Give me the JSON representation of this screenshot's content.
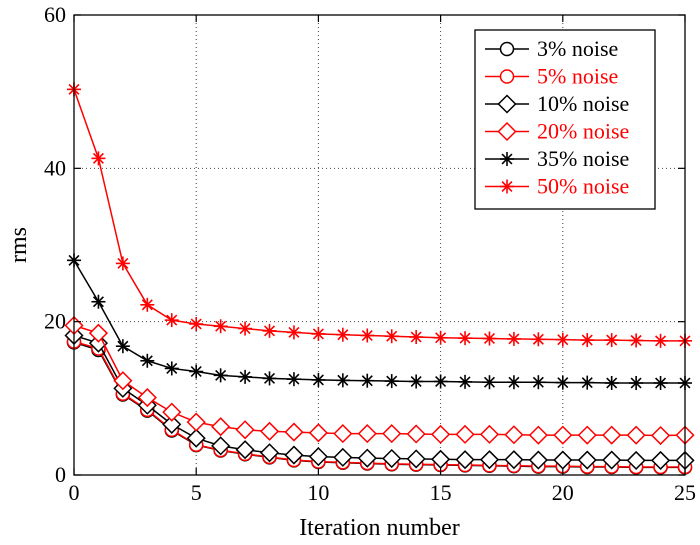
{
  "chart_data": {
    "type": "line",
    "title": "",
    "xlabel": "Iteration number",
    "ylabel": "rms",
    "xlim": [
      0,
      25
    ],
    "ylim": [
      0,
      60
    ],
    "xticks": [
      0,
      5,
      10,
      15,
      20,
      25
    ],
    "yticks": [
      0,
      20,
      40,
      60
    ],
    "grid": true,
    "legend_position": "top-right",
    "x": [
      0,
      1,
      2,
      3,
      4,
      5,
      6,
      7,
      8,
      9,
      10,
      11,
      12,
      13,
      14,
      15,
      16,
      17,
      18,
      19,
      20,
      21,
      22,
      23,
      24,
      25
    ],
    "series": [
      {
        "name": "3% noise",
        "color": "#000000",
        "marker": "circle",
        "values": [
          17.3,
          16.3,
          10.5,
          8.4,
          5.8,
          3.9,
          3.2,
          2.7,
          2.3,
          1.9,
          1.7,
          1.6,
          1.5,
          1.4,
          1.35,
          1.3,
          1.25,
          1.2,
          1.15,
          1.1,
          1.1,
          1.05,
          1.05,
          1.0,
          1.0,
          1.0
        ]
      },
      {
        "name": "5% noise",
        "color": "#ff0000",
        "marker": "circle",
        "values": [
          17.4,
          16.5,
          10.6,
          8.5,
          5.9,
          3.95,
          3.25,
          2.75,
          2.35,
          1.95,
          1.75,
          1.65,
          1.55,
          1.45,
          1.4,
          1.35,
          1.3,
          1.25,
          1.2,
          1.15,
          1.15,
          1.1,
          1.1,
          1.05,
          1.05,
          1.05
        ]
      },
      {
        "name": "10% noise",
        "color": "#000000",
        "marker": "diamond",
        "values": [
          18.2,
          17.2,
          11.3,
          9.1,
          6.6,
          4.8,
          3.8,
          3.3,
          2.9,
          2.6,
          2.4,
          2.3,
          2.2,
          2.15,
          2.1,
          2.05,
          2.0,
          2.0,
          2.0,
          1.95,
          1.95,
          1.95,
          1.95,
          1.9,
          1.9,
          1.9
        ]
      },
      {
        "name": "20% noise",
        "color": "#ff0000",
        "marker": "diamond",
        "values": [
          19.5,
          18.5,
          12.3,
          10.1,
          8.2,
          6.9,
          6.3,
          5.9,
          5.7,
          5.6,
          5.5,
          5.4,
          5.4,
          5.4,
          5.35,
          5.3,
          5.3,
          5.3,
          5.25,
          5.2,
          5.2,
          5.2,
          5.2,
          5.2,
          5.15,
          5.2
        ]
      },
      {
        "name": "35% noise",
        "color": "#000000",
        "marker": "star",
        "values": [
          28.0,
          22.6,
          16.8,
          14.9,
          13.9,
          13.5,
          13.0,
          12.8,
          12.6,
          12.5,
          12.4,
          12.35,
          12.3,
          12.25,
          12.2,
          12.2,
          12.15,
          12.1,
          12.1,
          12.1,
          12.05,
          12.05,
          12.0,
          12.0,
          12.0,
          12.0
        ]
      },
      {
        "name": "50% noise",
        "color": "#ff0000",
        "marker": "star",
        "values": [
          50.3,
          41.3,
          27.6,
          22.2,
          20.2,
          19.7,
          19.4,
          19.1,
          18.8,
          18.6,
          18.4,
          18.3,
          18.2,
          18.1,
          18.0,
          17.9,
          17.85,
          17.8,
          17.75,
          17.7,
          17.65,
          17.6,
          17.6,
          17.55,
          17.5,
          17.5
        ]
      }
    ]
  }
}
